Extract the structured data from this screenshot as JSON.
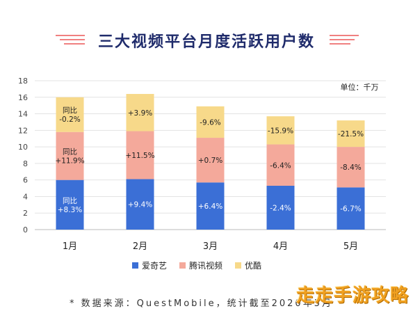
{
  "title": "三大视频平台月度活跃用户数",
  "source": "* 数据来源：QuestMobile，统计截至2020年5月",
  "watermark": "走走手游攻略",
  "chart_data": {
    "type": "bar",
    "stacked": true,
    "title": "三大视频平台月度活跃用户数",
    "unit_label": "单位：千万",
    "categories": [
      "1月",
      "2月",
      "3月",
      "4月",
      "5月"
    ],
    "ylim": [
      0,
      18
    ],
    "yticks": [
      0,
      2,
      4,
      6,
      8,
      10,
      12,
      14,
      16,
      18
    ],
    "grid": true,
    "legend_position": "bottom",
    "series": [
      {
        "name": "爱奇艺",
        "color": "#3b6fd6",
        "values": [
          6.0,
          6.1,
          5.7,
          5.3,
          5.1
        ],
        "labels": [
          [
            "同比",
            "+8.3%"
          ],
          [
            "+9.4%"
          ],
          [
            "+6.4%"
          ],
          [
            "-2.4%"
          ],
          [
            "-6.7%"
          ]
        ],
        "label_color": "#ffffff"
      },
      {
        "name": "腾讯视频",
        "color": "#f4a99b",
        "values": [
          5.8,
          5.8,
          5.4,
          5.0,
          4.9
        ],
        "labels": [
          [
            "同比",
            "+11.9%"
          ],
          [
            "+11.5%"
          ],
          [
            "+0.7%"
          ],
          [
            "-6.4%"
          ],
          [
            "-8.4%"
          ]
        ],
        "label_color": "#222222"
      },
      {
        "name": "优酷",
        "color": "#f7d98a",
        "values": [
          4.2,
          4.5,
          3.8,
          3.4,
          3.2
        ],
        "labels": [
          [
            "同比",
            "-0.2%"
          ],
          [
            "+3.9%"
          ],
          [
            "-9.6%"
          ],
          [
            "-15.9%"
          ],
          [
            "-21.5%"
          ]
        ],
        "label_color": "#222222"
      }
    ]
  }
}
